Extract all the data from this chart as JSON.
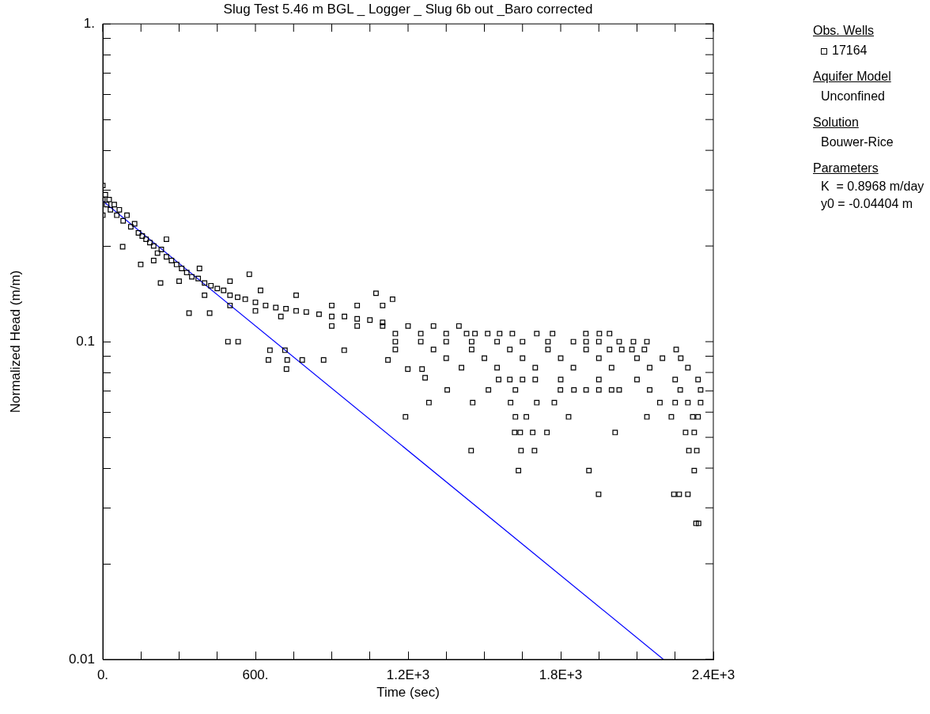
{
  "chart_data": {
    "type": "scatter",
    "title": "Slug Test 5.46 m BGL _ Logger _ Slug 6b out _Baro corrected",
    "xlabel": "Time (sec)",
    "ylabel": "Normalized Head (m/m)",
    "legend_title": "Obs. Wells",
    "legend": "right",
    "log": "y",
    "grid": false,
    "xlim": [
      0,
      2400
    ],
    "xticks": [
      {
        "value": 0,
        "label": "0."
      },
      {
        "value": 150,
        "label": null
      },
      {
        "value": 300,
        "label": null
      },
      {
        "value": 450,
        "label": null
      },
      {
        "value": 600,
        "label": "600."
      },
      {
        "value": 750,
        "label": null
      },
      {
        "value": 900,
        "label": null
      },
      {
        "value": 1050,
        "label": null
      },
      {
        "value": 1200,
        "label": "1.2E+3"
      },
      {
        "value": 1350,
        "label": null
      },
      {
        "value": 1500,
        "label": null
      },
      {
        "value": 1650,
        "label": null
      },
      {
        "value": 1800,
        "label": "1.8E+3"
      },
      {
        "value": 1950,
        "label": null
      },
      {
        "value": 2100,
        "label": null
      },
      {
        "value": 2250,
        "label": null
      },
      {
        "value": 2400,
        "label": "2.4E+3"
      }
    ],
    "ylim": [
      0.01,
      1
    ],
    "yticks": [
      {
        "value": 0.01,
        "label": "0.01"
      },
      {
        "value": 0.02,
        "label": null
      },
      {
        "value": 0.03,
        "label": null
      },
      {
        "value": 0.04,
        "label": null
      },
      {
        "value": 0.05,
        "label": null
      },
      {
        "value": 0.06,
        "label": null
      },
      {
        "value": 0.07,
        "label": null
      },
      {
        "value": 0.08,
        "label": null
      },
      {
        "value": 0.09,
        "label": null
      },
      {
        "value": 0.1,
        "label": "0.1"
      },
      {
        "value": 0.2,
        "label": null
      },
      {
        "value": 0.3,
        "label": null
      },
      {
        "value": 0.4,
        "label": null
      },
      {
        "value": 0.5,
        "label": null
      },
      {
        "value": 0.6,
        "label": null
      },
      {
        "value": 0.7,
        "label": null
      },
      {
        "value": 0.8,
        "label": null
      },
      {
        "value": 0.9,
        "label": null
      },
      {
        "value": 1,
        "label": "1."
      }
    ],
    "annotations": [
      "Aquifer Model",
      "Unconfined",
      "Solution",
      "Bouwer-Rice",
      "Parameters",
      "K  = 0.8968 m/day\ny0 = -0.04404 m"
    ],
    "series": [
      {
        "name": "17164",
        "color": "#000000",
        "marker": "square",
        "x": [
          0,
          0,
          0,
          10,
          15,
          25,
          30,
          45,
          55,
          65,
          80,
          95,
          110,
          125,
          140,
          155,
          170,
          185,
          200,
          215,
          230,
          250,
          270,
          290,
          310,
          330,
          350,
          375,
          400,
          425,
          450,
          475,
          500,
          530,
          560,
          600,
          640,
          680,
          720,
          760,
          800,
          850,
          900,
          950,
          1000,
          1050,
          1100,
          200,
          300,
          400,
          500,
          600,
          700,
          250,
          380,
          500,
          620,
          760,
          900,
          1000,
          1100,
          78,
          149,
          227,
          339,
          420,
          492,
          532,
          657,
          716,
          651,
          725,
          784,
          868,
          722,
          949,
          1121,
          1199,
          1255,
          1267,
          1074,
          1139,
          576,
          900,
          1000,
          1100,
          1200,
          1300,
          1400,
          1150,
          1250,
          1350,
          1430,
          1463,
          1513,
          1560,
          1610,
          1706,
          1768,
          1899,
          1952,
          1992,
          1150,
          1250,
          1350,
          1450,
          1550,
          1650,
          1750,
          1850,
          1900,
          1950,
          2030,
          2086,
          2139,
          1150,
          1300,
          1450,
          1600,
          1750,
          1900,
          1992,
          2040,
          2080,
          2129,
          2254,
          1350,
          1500,
          1650,
          1800,
          1950,
          2100,
          2200,
          2272,
          1410,
          1550,
          1700,
          1850,
          2000,
          2150,
          2300,
          1556,
          1600,
          1650,
          1700,
          1800,
          1950,
          2100,
          2250,
          2340,
          1354,
          1516,
          1622,
          1799,
          1852,
          1900,
          1950,
          2000,
          2030,
          2150,
          2270,
          2350,
          1282,
          1454,
          1603,
          1706,
          1775,
          2190,
          2250,
          2300,
          2350,
          1190,
          1622,
          1665,
          1831,
          2139,
          2235,
          2319,
          2340,
          1619,
          1641,
          1690,
          1746,
          2014,
          2291,
          2325,
          1448,
          1644,
          1697,
          2304,
          2335,
          1634,
          1911,
          2325,
          1949,
          2245,
          2266,
          2300,
          2332,
          2342
        ],
        "values": [
          0.31,
          0.28,
          0.25,
          0.29,
          0.27,
          0.28,
          0.26,
          0.27,
          0.25,
          0.26,
          0.24,
          0.25,
          0.23,
          0.235,
          0.22,
          0.215,
          0.21,
          0.205,
          0.2,
          0.19,
          0.195,
          0.185,
          0.18,
          0.175,
          0.17,
          0.165,
          0.16,
          0.158,
          0.153,
          0.15,
          0.147,
          0.145,
          0.14,
          0.138,
          0.136,
          0.133,
          0.13,
          0.128,
          0.127,
          0.125,
          0.124,
          0.122,
          0.12,
          0.12,
          0.118,
          0.117,
          0.115,
          0.18,
          0.155,
          0.14,
          0.13,
          0.125,
          0.12,
          0.21,
          0.17,
          0.155,
          0.145,
          0.14,
          0.13,
          0.13,
          0.13,
          0.199,
          0.175,
          0.153,
          0.123,
          0.123,
          0.1,
          0.1,
          0.094,
          0.094,
          0.0876,
          0.0876,
          0.0876,
          0.0876,
          0.082,
          0.094,
          0.0876,
          0.082,
          0.082,
          0.077,
          0.142,
          0.136,
          0.163,
          0.112,
          0.112,
          0.112,
          0.112,
          0.112,
          0.112,
          0.106,
          0.106,
          0.106,
          0.106,
          0.106,
          0.106,
          0.106,
          0.106,
          0.106,
          0.106,
          0.106,
          0.106,
          0.106,
          0.1,
          0.1,
          0.1,
          0.1,
          0.1,
          0.1,
          0.1,
          0.1,
          0.1,
          0.1,
          0.1,
          0.1,
          0.1,
          0.0945,
          0.0945,
          0.0945,
          0.0945,
          0.0945,
          0.0945,
          0.0945,
          0.0945,
          0.0945,
          0.0945,
          0.0945,
          0.0887,
          0.0887,
          0.0887,
          0.0887,
          0.0887,
          0.0887,
          0.0887,
          0.0887,
          0.0828,
          0.0828,
          0.0828,
          0.0828,
          0.0828,
          0.0828,
          0.0828,
          0.076,
          0.076,
          0.076,
          0.076,
          0.076,
          0.076,
          0.076,
          0.076,
          0.076,
          0.0705,
          0.0705,
          0.0705,
          0.0705,
          0.0705,
          0.0705,
          0.0705,
          0.0705,
          0.0705,
          0.0705,
          0.0705,
          0.0705,
          0.0643,
          0.0643,
          0.0643,
          0.0643,
          0.0643,
          0.0643,
          0.0643,
          0.0643,
          0.0643,
          0.058,
          0.058,
          0.058,
          0.058,
          0.058,
          0.058,
          0.058,
          0.058,
          0.0518,
          0.0518,
          0.0518,
          0.0518,
          0.0518,
          0.0518,
          0.0518,
          0.0454,
          0.0454,
          0.0454,
          0.0454,
          0.0454,
          0.0393,
          0.0393,
          0.0393,
          0.0331,
          0.0331,
          0.0331,
          0.0331,
          0.0268,
          0.0268
        ]
      },
      {
        "type": "line",
        "color": "#0000ff",
        "marker": "none",
        "x": [
          0,
          2204
        ],
        "values": [
          0.277,
          0.01
        ]
      }
    ]
  }
}
